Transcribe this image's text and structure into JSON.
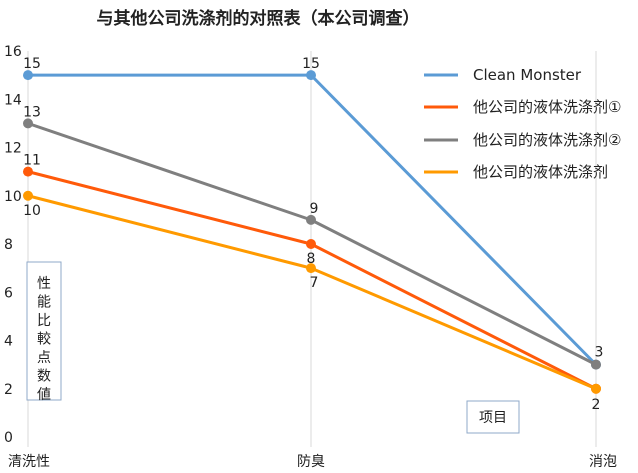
{
  "chart_data": {
    "type": "line",
    "title": "与其他公司洗涤剂的对照表（本公司调查）",
    "categories": [
      "清洗性",
      "防臭",
      "消泡"
    ],
    "ylim": [
      0,
      16
    ],
    "yticks": [
      0,
      2,
      4,
      6,
      8,
      10,
      12,
      14,
      16
    ],
    "ylabel": "性能比較点数値",
    "xlabel": "项目",
    "legend_position": "right",
    "grid": "vertical at categories",
    "series": [
      {
        "name": "Clean Monster",
        "values": [
          15,
          15,
          3
        ],
        "color": "#5B9BD5"
      },
      {
        "name": "他公司的液体洗涤剂①",
        "values": [
          11,
          8,
          2
        ],
        "color": "#FF5A0A"
      },
      {
        "name": "他公司的液体洗涤剂②",
        "values": [
          13,
          9,
          3
        ],
        "color": "#7F7F7F"
      },
      {
        "name": "他公司的液体洗涤剂",
        "values": [
          10,
          7,
          2
        ],
        "color": "#FF9A00"
      }
    ]
  }
}
